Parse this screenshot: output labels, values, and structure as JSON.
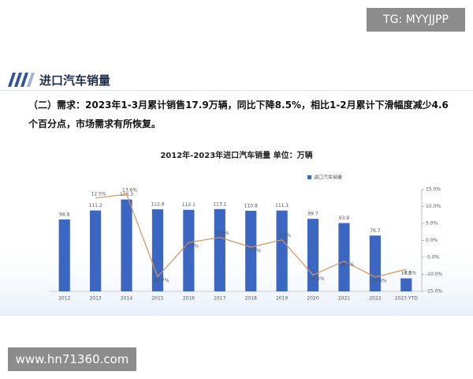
{
  "watermark_top": "TG: MYYJJPP",
  "watermark_bottom": "www.hn71360.com",
  "header": {
    "title": "进口汽车销量"
  },
  "paragraph": "（二）需求：2023年1-3月累计销售17.9万辆，同比下降8.5%，相比1-2月累计下滑幅度减少4.6个百分点，市场需求有所恢复。",
  "chart_data": {
    "type": "bar",
    "title": "2012年-2023年进口汽车销量 单位：万辆",
    "categories": [
      "2012",
      "2013",
      "2014",
      "2015",
      "2016",
      "2017",
      "2018",
      "2019",
      "2020",
      "2021",
      "2022",
      "2023 YTD"
    ],
    "series": [
      {
        "name": "进口汽车销量",
        "type": "bar",
        "color": "#3b66c2",
        "values": [
          98.8,
          111.2,
          126.3,
          112.8,
          112.1,
          113.1,
          110.8,
          111.1,
          99.7,
          93.9,
          76.7,
          17.9
        ]
      },
      {
        "type": "line",
        "axis": "y2",
        "color": "#d9925a",
        "values": [
          null,
          12.5,
          13.6,
          -10.7,
          -0.6,
          0.9,
          -2.0,
          0.2,
          -10.2,
          -6.1,
          -10.8,
          -8.5
        ],
        "value_labels": [
          null,
          "12.5%",
          "13.6%",
          "-10.7%",
          "-0.6%",
          "0.9%",
          "-2.0%",
          "0.2%",
          "-10.2%",
          "-6.1%",
          "-10.8%",
          "-8.5%"
        ]
      }
    ],
    "ylim": [
      0,
      140
    ],
    "y2lim": [
      -15,
      15
    ],
    "y2ticks": [
      {
        "value": 15,
        "label": "15.0%"
      },
      {
        "value": 10,
        "label": "10.0%"
      },
      {
        "value": 5,
        "label": "5.0%"
      },
      {
        "value": 0,
        "label": "0.0%"
      },
      {
        "value": -5,
        "label": "-5.0%"
      },
      {
        "value": -10,
        "label": "-10.0%"
      },
      {
        "value": -15,
        "label": "-15.0%"
      }
    ],
    "legend": "top"
  }
}
